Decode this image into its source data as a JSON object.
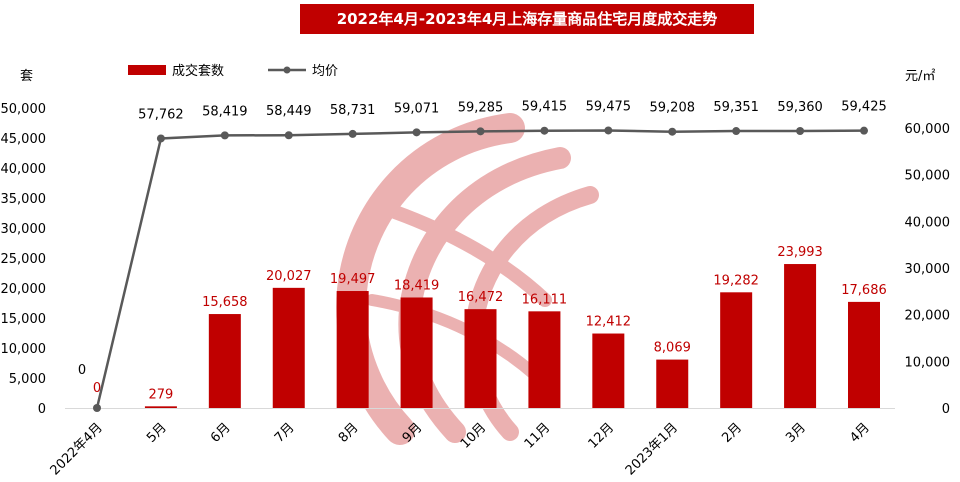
{
  "chart_data": {
    "type": "bar+line",
    "title": "2022年4月-2023年4月上海存量商品住宅月度成交走势",
    "categories": [
      "2022年4月",
      "5月",
      "6月",
      "7月",
      "8月",
      "9月",
      "10月",
      "11月",
      "12月",
      "2023年1月",
      "2月",
      "3月",
      "4月"
    ],
    "series": [
      {
        "name": "成交套数",
        "type": "bar",
        "axis": "left",
        "color": "#c00000",
        "values": [
          0,
          279,
          15658,
          20027,
          19497,
          18419,
          16472,
          16111,
          12412,
          8069,
          19282,
          23993,
          17686
        ],
        "labels": [
          "0",
          "279",
          "15,658",
          "20,027",
          "19,497",
          "18,419",
          "16,472",
          "16,111",
          "12,412",
          "8,069",
          "19,282",
          "23,993",
          "17,686"
        ]
      },
      {
        "name": "均价",
        "type": "line",
        "axis": "right",
        "color": "#595959",
        "values": [
          0,
          57762,
          58419,
          58449,
          58731,
          59071,
          59285,
          59415,
          59475,
          59208,
          59351,
          59360,
          59425
        ],
        "labels": [
          "0",
          "57,762",
          "58,419",
          "58,449",
          "58,731",
          "59,071",
          "59,285",
          "59,415",
          "59,475",
          "59,208",
          "59,351",
          "59,360",
          "59,425"
        ]
      }
    ],
    "y_left": {
      "label": "套",
      "ylim": [
        0,
        50000
      ],
      "ticks": [
        "0",
        "5,000",
        "10,000",
        "15,000",
        "20,000",
        "25,000",
        "30,000",
        "35,000",
        "40,000",
        "45,000",
        "50,000"
      ]
    },
    "y_right": {
      "label": "元/㎡",
      "ylim": [
        0,
        65000
      ],
      "ticks": [
        "0",
        "10,000",
        "20,000",
        "30,000",
        "40,000",
        "50,000",
        "60,000"
      ]
    },
    "legend_position": "top-left",
    "grid": false
  }
}
